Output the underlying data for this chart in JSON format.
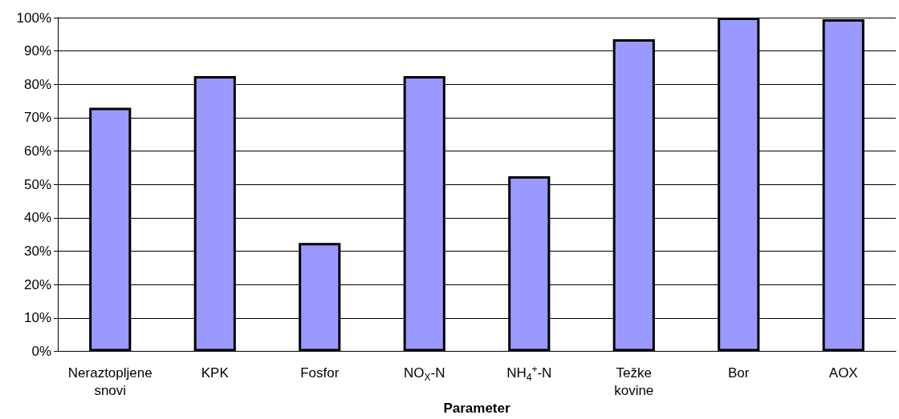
{
  "chart_data": {
    "type": "bar",
    "xlabel": "Parameter",
    "categories": [
      "Neraztopljene\nsnovi",
      "KPK",
      "Fosfor",
      "NO$_{X}$-N",
      "NH$_{4}$$^{+}$-N",
      "Težke\nkovine",
      "Bor",
      "AOX"
    ],
    "values": [
      73,
      82.5,
      32.5,
      82.5,
      52.5,
      93.5,
      100,
      99.5
    ],
    "color": "#9999ff",
    "ylim": [
      0,
      100
    ],
    "yticks": [
      {
        "value": 0,
        "label": "0%"
      },
      {
        "value": 10,
        "label": "10%"
      },
      {
        "value": 20,
        "label": "20%"
      },
      {
        "value": 30,
        "label": "30%"
      },
      {
        "value": 40,
        "label": "40%"
      },
      {
        "value": 50,
        "label": "50%"
      },
      {
        "value": 60,
        "label": "60%"
      },
      {
        "value": 70,
        "label": "70%"
      },
      {
        "value": 80,
        "label": "80%"
      },
      {
        "value": 90,
        "label": "90%"
      },
      {
        "value": 100,
        "label": "100%"
      }
    ],
    "grid": "y"
  }
}
